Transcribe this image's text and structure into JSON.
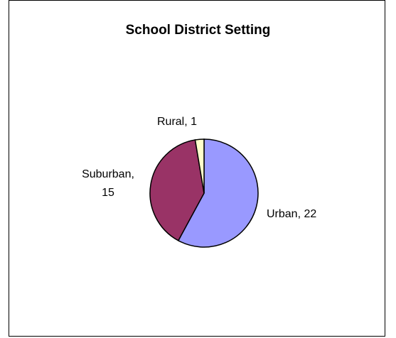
{
  "chart_data": {
    "type": "pie",
    "title": "School District Setting",
    "slices": [
      {
        "label": "Urban",
        "value": 22,
        "display": "Urban, 22",
        "color": "#9999FF"
      },
      {
        "label": "Suburban",
        "value": 15,
        "display_line1": "Suburban,",
        "display_line2": "15",
        "color": "#993366"
      },
      {
        "label": "Rural",
        "value": 1,
        "display": "Rural, 1",
        "color": "#FFFFCC"
      }
    ],
    "legend": "none"
  }
}
